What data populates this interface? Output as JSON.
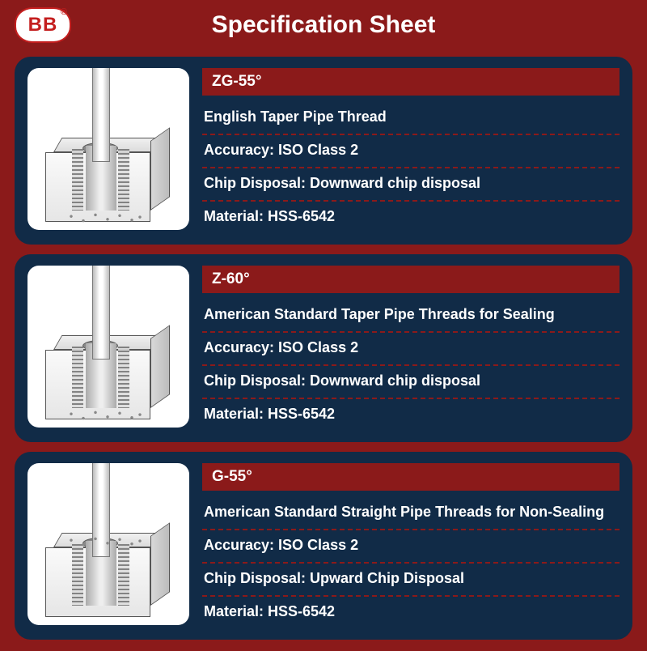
{
  "brand_logo_text": "BB",
  "page_title": "Specification Sheet",
  "colors": {
    "page_background": "#8b1a1a",
    "card_background": "#112b47",
    "model_bar_background": "#8b1a1a",
    "divider_color": "#8b1a1a",
    "text_color": "#ffffff",
    "logo_border": "#c41e1e"
  },
  "specs": [
    {
      "model": "ZG-55°",
      "description": "English Taper Pipe Thread",
      "accuracy": "Accuracy: ISO Class 2",
      "chip_disposal": "Chip Disposal: Downward chip disposal",
      "material": "Material: HSS-6542",
      "chip_direction": "down"
    },
    {
      "model": "Z-60°",
      "description": "American Standard Taper Pipe Threads for Sealing",
      "accuracy": "Accuracy: ISO Class 2",
      "chip_disposal": "Chip Disposal: Downward chip disposal",
      "material": "Material: HSS-6542",
      "chip_direction": "down"
    },
    {
      "model": "G-55°",
      "description": "American Standard Straight Pipe Threads for Non-Sealing",
      "accuracy": "Accuracy: ISO Class 2",
      "chip_disposal": "Chip Disposal: Upward Chip Disposal",
      "material": "Material: HSS-6542",
      "chip_direction": "up"
    }
  ]
}
